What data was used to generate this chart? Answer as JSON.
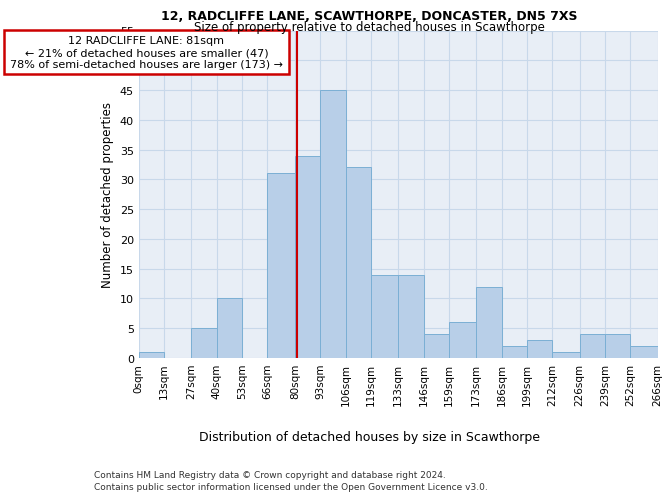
{
  "title1": "12, RADCLIFFE LANE, SCAWTHORPE, DONCASTER, DN5 7XS",
  "title2": "Size of property relative to detached houses in Scawthorpe",
  "xlabel": "Distribution of detached houses by size in Scawthorpe",
  "ylabel": "Number of detached properties",
  "footnote1": "Contains HM Land Registry data © Crown copyright and database right 2024.",
  "footnote2": "Contains public sector information licensed under the Open Government Licence v3.0.",
  "annotation_line1": "12 RADCLIFFE LANE: 81sqm",
  "annotation_line2": "← 21% of detached houses are smaller (47)",
  "annotation_line3": "78% of semi-detached houses are larger (173) →",
  "bin_edges": [
    0,
    13,
    27,
    40,
    53,
    66,
    80,
    93,
    106,
    119,
    133,
    146,
    159,
    173,
    186,
    199,
    212,
    226,
    239,
    252,
    266
  ],
  "bar_values": [
    1,
    0,
    5,
    10,
    0,
    31,
    34,
    45,
    32,
    14,
    14,
    4,
    6,
    12,
    2,
    3,
    1,
    4,
    4,
    2
  ],
  "bar_color": "#b8cfe8",
  "bar_edge_color": "#7bafd4",
  "grid_color": "#c8d8ea",
  "bg_color": "#e8eef6",
  "vline_x": 81,
  "vline_color": "#cc0000",
  "ylim": [
    0,
    55
  ],
  "yticks": [
    0,
    5,
    10,
    15,
    20,
    25,
    30,
    35,
    40,
    45,
    50,
    55
  ],
  "tick_labels": [
    "0sqm",
    "13sqm",
    "27sqm",
    "40sqm",
    "53sqm",
    "66sqm",
    "80sqm",
    "93sqm",
    "106sqm",
    "119sqm",
    "133sqm",
    "146sqm",
    "159sqm",
    "173sqm",
    "186sqm",
    "199sqm",
    "212sqm",
    "226sqm",
    "239sqm",
    "252sqm",
    "266sqm"
  ]
}
